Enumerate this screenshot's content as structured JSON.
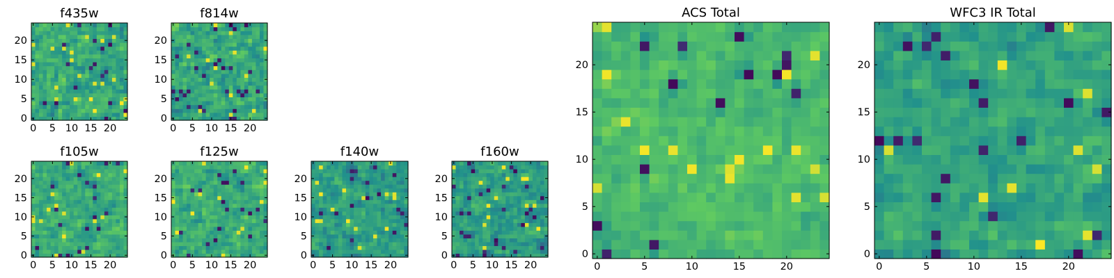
{
  "figure": {
    "colormap": "viridis",
    "colormap_stops": [
      "#440154",
      "#3b528b",
      "#21918c",
      "#5ec962",
      "#fde725"
    ],
    "background": "#ffffff"
  },
  "chart_data": [
    {
      "type": "heatmap",
      "title": "f435w",
      "xlabel": "",
      "ylabel": "",
      "xlim": [
        0,
        24
      ],
      "ylim": [
        0,
        24
      ],
      "grid": false,
      "origin": "lower",
      "xticks": [
        0,
        5,
        10,
        15,
        20
      ],
      "yticks": [
        0,
        5,
        10,
        15,
        20
      ],
      "xtick_labels": [
        "0",
        "5",
        "10",
        "15",
        "20"
      ],
      "ytick_labels": [
        "0",
        "5",
        "10",
        "15",
        "20"
      ],
      "size": 25,
      "mean": 0.6,
      "spread": 0.2,
      "seed": 11
    },
    {
      "type": "heatmap",
      "title": "f814w",
      "xlabel": "",
      "ylabel": "",
      "xlim": [
        0,
        24
      ],
      "ylim": [
        0,
        24
      ],
      "grid": false,
      "origin": "lower",
      "xticks": [
        0,
        5,
        10,
        15,
        20
      ],
      "yticks": [
        0,
        5,
        10,
        15,
        20
      ],
      "xtick_labels": [
        "0",
        "5",
        "10",
        "15",
        "20"
      ],
      "ytick_labels": [
        "0",
        "5",
        "10",
        "15",
        "20"
      ],
      "size": 25,
      "mean": 0.6,
      "spread": 0.2,
      "seed": 23
    },
    {
      "type": "heatmap",
      "title": "f105w",
      "xlabel": "",
      "ylabel": "",
      "xlim": [
        0,
        24
      ],
      "ylim": [
        0,
        24
      ],
      "grid": false,
      "origin": "lower",
      "xticks": [
        0,
        5,
        10,
        15,
        20
      ],
      "yticks": [
        0,
        5,
        10,
        15,
        20
      ],
      "xtick_labels": [
        "0",
        "5",
        "10",
        "15",
        "20"
      ],
      "ytick_labels": [
        "0",
        "5",
        "10",
        "15",
        "20"
      ],
      "size": 25,
      "mean": 0.62,
      "spread": 0.17,
      "seed": 37
    },
    {
      "type": "heatmap",
      "title": "f125w",
      "xlabel": "",
      "ylabel": "",
      "xlim": [
        0,
        24
      ],
      "ylim": [
        0,
        24
      ],
      "grid": false,
      "origin": "lower",
      "xticks": [
        0,
        5,
        10,
        15,
        20
      ],
      "yticks": [
        0,
        5,
        10,
        15,
        20
      ],
      "xtick_labels": [
        "0",
        "5",
        "10",
        "15",
        "20"
      ],
      "ytick_labels": [
        "0",
        "5",
        "10",
        "15",
        "20"
      ],
      "size": 25,
      "mean": 0.62,
      "spread": 0.17,
      "seed": 41
    },
    {
      "type": "heatmap",
      "title": "f140w",
      "xlabel": "",
      "ylabel": "",
      "xlim": [
        0,
        24
      ],
      "ylim": [
        0,
        24
      ],
      "grid": false,
      "origin": "lower",
      "xticks": [
        0,
        5,
        10,
        15,
        20
      ],
      "yticks": [
        0,
        5,
        10,
        15,
        20
      ],
      "xtick_labels": [
        "0",
        "5",
        "10",
        "15",
        "20"
      ],
      "ytick_labels": [
        "0",
        "5",
        "10",
        "15",
        "20"
      ],
      "size": 25,
      "mean": 0.56,
      "spread": 0.17,
      "seed": 53
    },
    {
      "type": "heatmap",
      "title": "f160w",
      "xlabel": "",
      "ylabel": "",
      "xlim": [
        0,
        24
      ],
      "ylim": [
        0,
        24
      ],
      "grid": false,
      "origin": "lower",
      "xticks": [
        0,
        5,
        10,
        15,
        20
      ],
      "yticks": [
        0,
        5,
        10,
        15,
        20
      ],
      "xtick_labels": [
        "0",
        "5",
        "10",
        "15",
        "20"
      ],
      "ytick_labels": [
        "0",
        "5",
        "10",
        "15",
        "20"
      ],
      "size": 25,
      "mean": 0.56,
      "spread": 0.17,
      "seed": 67
    },
    {
      "type": "heatmap",
      "title": "ACS Total",
      "xlabel": "",
      "ylabel": "",
      "xlim": [
        0,
        24
      ],
      "ylim": [
        0,
        24
      ],
      "grid": false,
      "origin": "lower",
      "xticks": [
        0,
        5,
        10,
        15,
        20
      ],
      "yticks": [
        0,
        5,
        10,
        15,
        20
      ],
      "xtick_labels": [
        "0",
        "5",
        "10",
        "15",
        "20"
      ],
      "ytick_labels": [
        "0",
        "5",
        "10",
        "15",
        "20"
      ],
      "size": 25,
      "mean": 0.68,
      "spread": 0.13,
      "seed": 79
    },
    {
      "type": "heatmap",
      "title": "WFC3 IR Total",
      "xlabel": "",
      "ylabel": "",
      "xlim": [
        0,
        24
      ],
      "ylim": [
        0,
        24
      ],
      "grid": false,
      "origin": "lower",
      "xticks": [
        0,
        5,
        10,
        15,
        20
      ],
      "yticks": [
        0,
        5,
        10,
        15,
        20
      ],
      "xtick_labels": [
        "0",
        "5",
        "10",
        "15",
        "20"
      ],
      "ytick_labels": [
        "0",
        "5",
        "10",
        "15",
        "20"
      ],
      "size": 25,
      "mean": 0.58,
      "spread": 0.14,
      "seed": 97
    }
  ]
}
